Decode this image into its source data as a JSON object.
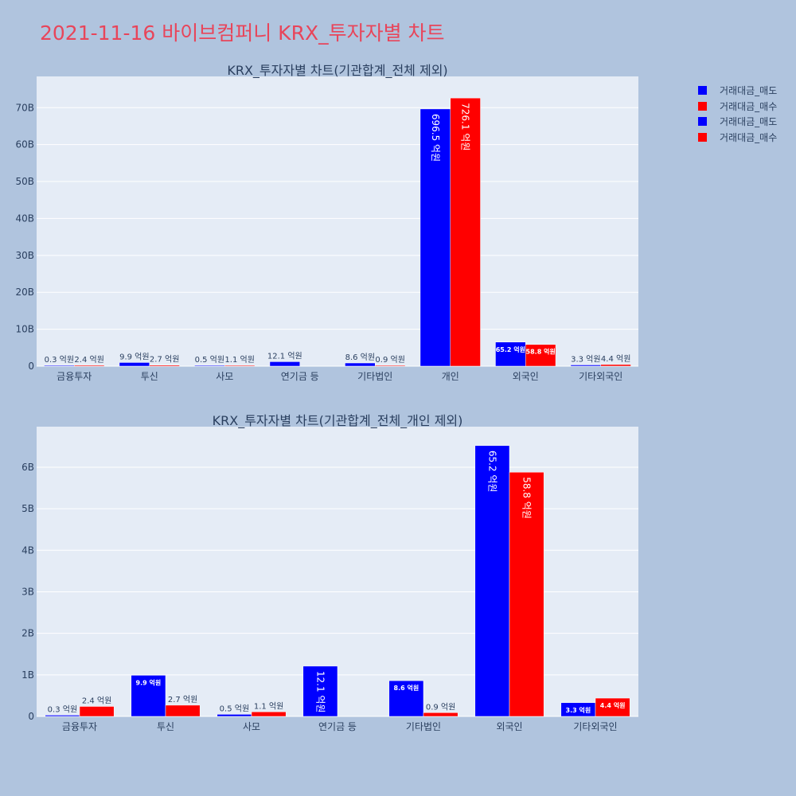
{
  "title": "2021-11-16 바이브컴퍼니 KRX_투자자별 차트",
  "legend": [
    {
      "label": "거래대금_매도",
      "color": "#0000ff"
    },
    {
      "label": "거래대금_매수",
      "color": "#ff0000"
    },
    {
      "label": "거래대금_매도",
      "color": "#0000ff"
    },
    {
      "label": "거래대금_매수",
      "color": "#ff0000"
    }
  ],
  "chart_data": [
    {
      "type": "bar",
      "title": "KRX_투자자별 차트(기관합계_전체 제외)",
      "categories": [
        "금융투자",
        "투신",
        "사모",
        "연기금 등",
        "기타법인",
        "개인",
        "외국인",
        "기타외국인"
      ],
      "ylim": [
        0,
        77.6
      ],
      "yticks": [
        0,
        10,
        20,
        30,
        40,
        50,
        60,
        70
      ],
      "yticklabels": [
        "0",
        "10B",
        "20B",
        "30B",
        "40B",
        "50B",
        "60B",
        "70B"
      ],
      "series": [
        {
          "name": "거래대금_매도",
          "color": "#0000ff",
          "values": [
            0.03,
            0.99,
            0.05,
            1.21,
            0.86,
            69.65,
            6.52,
            0.33
          ],
          "labels": [
            "0.3 억원",
            "9.9 억원",
            "0.5 억원",
            "12.1 억원",
            "8.6 억원",
            "696.5 억원",
            "65.2 억원",
            "3.3 억원"
          ]
        },
        {
          "name": "거래대금_매수",
          "color": "#ff0000",
          "values": [
            0.24,
            0.27,
            0.11,
            0,
            0.09,
            72.61,
            5.88,
            0.44
          ],
          "labels": [
            "2.4 억원",
            "2.7 억원",
            "1.1 억원",
            "",
            "0.9 억원",
            "726.1 억원",
            "58.8 억원",
            "4.4 억원"
          ]
        }
      ],
      "grid": true
    },
    {
      "type": "bar",
      "title": "KRX_투자자별 차트(기관합계_전체_개인 제외)",
      "categories": [
        "금융투자",
        "투신",
        "사모",
        "연기금 등",
        "기타법인",
        "외국인",
        "기타외국인"
      ],
      "ylim": [
        0,
        6.9
      ],
      "yticks": [
        0,
        1,
        2,
        3,
        4,
        5,
        6
      ],
      "yticklabels": [
        "0",
        "1B",
        "2B",
        "3B",
        "4B",
        "5B",
        "6B"
      ],
      "series": [
        {
          "name": "거래대금_매도",
          "color": "#0000ff",
          "values": [
            0.03,
            0.99,
            0.05,
            1.21,
            0.86,
            6.52,
            0.33
          ],
          "labels": [
            "0.3 억원",
            "9.9 억원",
            "0.5 억원",
            "12.1 억원",
            "8.6 억원",
            "65.2 억원",
            "3.3 억원"
          ]
        },
        {
          "name": "거래대금_매수",
          "color": "#ff0000",
          "values": [
            0.24,
            0.27,
            0.11,
            0,
            0.09,
            5.88,
            0.44
          ],
          "labels": [
            "2.4 억원",
            "2.7 억원",
            "1.1 억원",
            "",
            "0.9 억원",
            "58.8 억원",
            "4.4 억원"
          ]
        }
      ],
      "grid": true
    }
  ]
}
